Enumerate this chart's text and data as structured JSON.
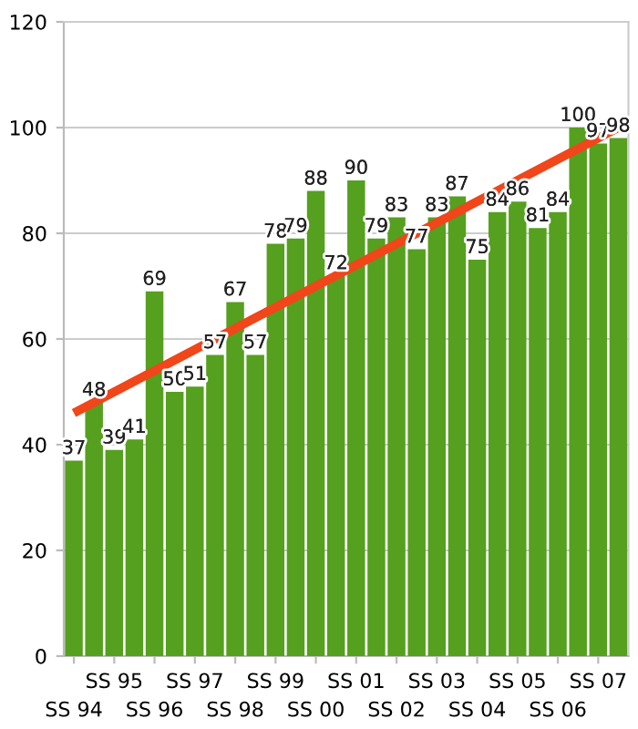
{
  "chart_data": {
    "type": "bar",
    "categories": [
      "SS 94",
      null,
      "SS 95",
      null,
      "SS 96",
      null,
      "SS 97",
      null,
      "SS 98",
      null,
      "SS 99",
      null,
      "SS 00",
      null,
      "SS 01",
      null,
      "SS 02",
      null,
      "SS 03",
      null,
      "SS 04",
      null,
      "SS 05",
      null,
      "SS 06",
      null,
      "SS 07",
      null
    ],
    "series": [
      {
        "color": "#55a01e",
        "values": [
          37,
          48,
          39,
          41,
          69,
          50,
          51,
          57,
          67,
          57,
          78,
          79,
          88,
          72,
          90,
          79,
          83,
          77,
          83,
          87,
          75,
          84,
          86,
          81,
          84,
          100,
          97,
          98
        ],
        "value_labels": [
          "37",
          "48",
          "39",
          "41",
          "69",
          "50",
          "51",
          "57",
          "67",
          "57",
          "78",
          "79",
          "88",
          "72",
          "90",
          "79",
          "83",
          "77",
          "83",
          "87",
          "75",
          "84",
          "86",
          "81",
          "84",
          "100",
          "97",
          "98"
        ]
      },
      {
        "type": "line",
        "color": "#f0461a",
        "values": [
          46,
          null,
          null,
          null,
          null,
          null,
          null,
          null,
          null,
          null,
          null,
          null,
          null,
          null,
          null,
          null,
          null,
          null,
          null,
          null,
          null,
          null,
          null,
          null,
          null,
          null,
          null,
          100
        ]
      }
    ],
    "ylim": [
      0,
      120
    ],
    "yticks": [
      0,
      20,
      40,
      60,
      80,
      100,
      120
    ],
    "grid": "y"
  }
}
